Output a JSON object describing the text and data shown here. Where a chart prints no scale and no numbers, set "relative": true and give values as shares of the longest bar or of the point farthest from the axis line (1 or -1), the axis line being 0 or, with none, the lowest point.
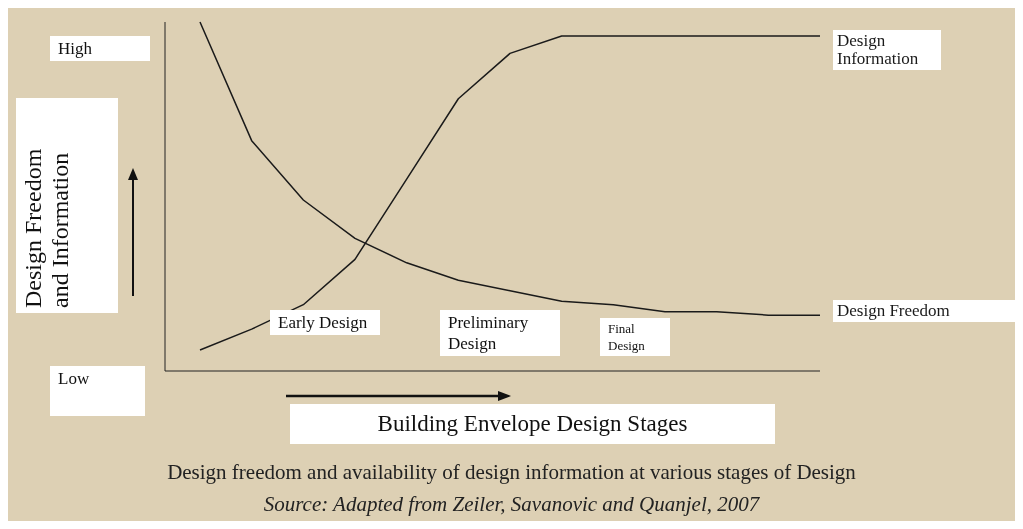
{
  "chart_data": {
    "type": "line",
    "relative": true,
    "title": "Design freedom and availability of design information at various stages of Design",
    "xlabel": "Building Envelope Design Stages",
    "ylabel": "Design Freedom and Information",
    "categories": [
      null,
      null,
      null,
      null,
      null,
      null,
      null,
      null,
      null,
      null,
      null,
      null,
      null
    ],
    "series": [
      {
        "name": "Design Information",
        "color": "#1a1a1a",
        "values": [
          0.06,
          0.12,
          0.19,
          0.32,
          0.55,
          0.78,
          0.91,
          0.96,
          0.96,
          0.96,
          0.96,
          0.96,
          0.96
        ]
      },
      {
        "name": "Design Freedom",
        "color": "#1a1a1a",
        "values": [
          1,
          0.66,
          0.49,
          0.38,
          0.31,
          0.26,
          0.23,
          0.2,
          0.19,
          0.17,
          0.17,
          0.16,
          0.16
        ]
      }
    ],
    "annotations": [
      "High",
      "Low",
      "Early Design",
      "Preliminary Design",
      "Final Design",
      "Source: Adapted from Zeiler, Savanovic and Quanjel, 2007"
    ],
    "legend": false,
    "grid": false,
    "marker": "none",
    "line_style": "solid"
  }
}
